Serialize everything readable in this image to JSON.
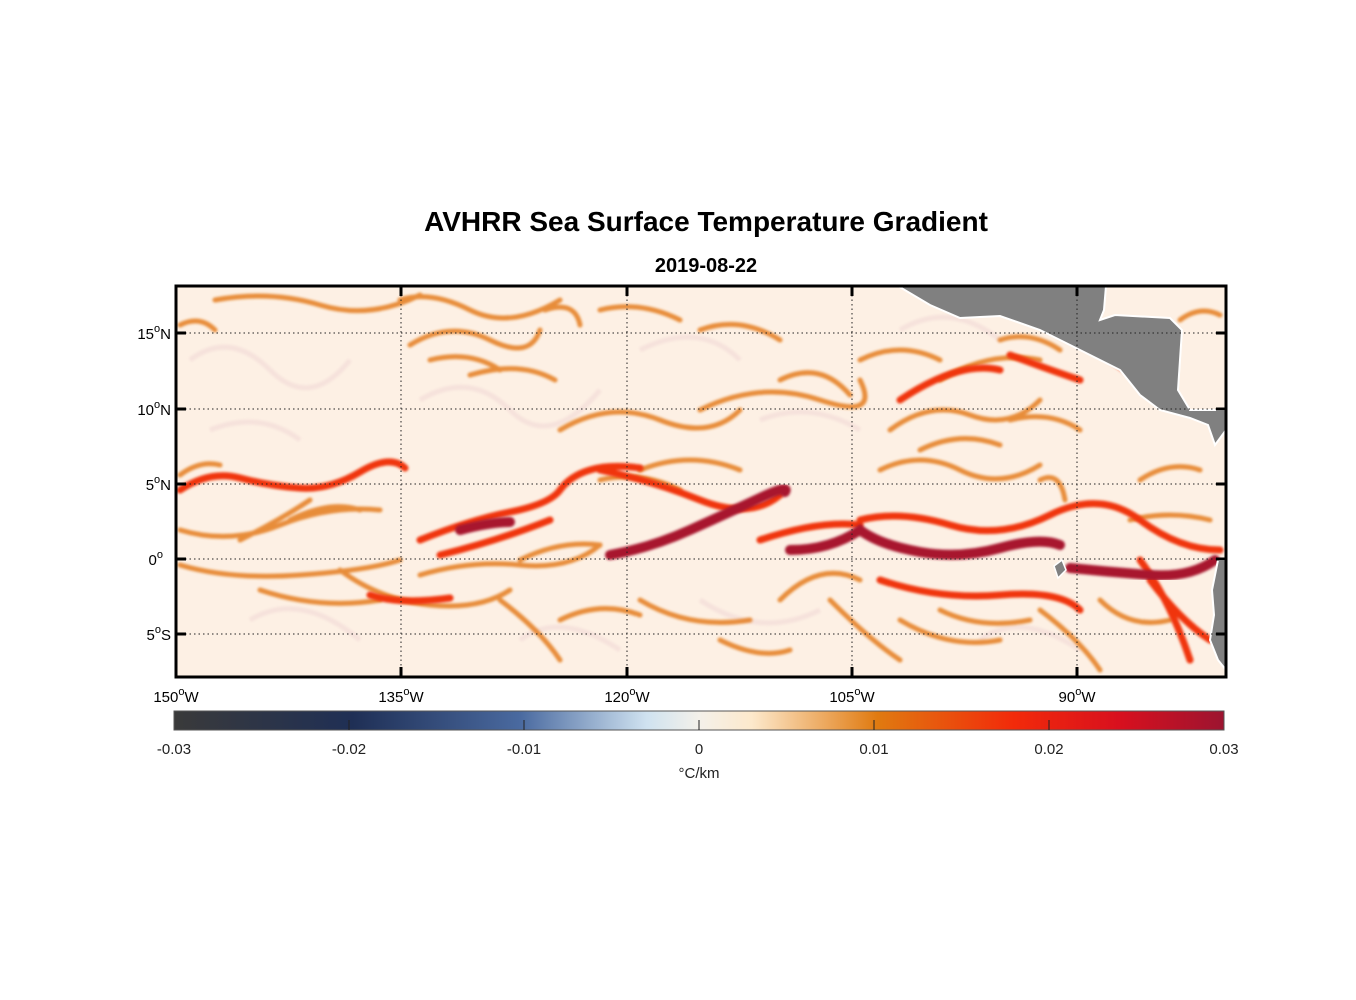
{
  "figure": {
    "title": "AVHRR Sea Surface Temperature Gradient",
    "subtitle": "2019-08-22"
  },
  "map": {
    "lon_ticks": [
      {
        "deg": "150",
        "hem": "W"
      },
      {
        "deg": "135",
        "hem": "W"
      },
      {
        "deg": "120",
        "hem": "W"
      },
      {
        "deg": "105",
        "hem": "W"
      },
      {
        "deg": "90",
        "hem": "W"
      }
    ],
    "lat_ticks": [
      {
        "deg": "15",
        "hem": "N"
      },
      {
        "deg": "10",
        "hem": "N"
      },
      {
        "deg": "5",
        "hem": "N"
      },
      {
        "deg": "0",
        "hem": ""
      },
      {
        "deg": "5",
        "hem": "S"
      }
    ],
    "degree_symbol": "o",
    "land_color": "#808080",
    "ocean_background": "#fdf0e4",
    "grid": "dotted"
  },
  "colorbar": {
    "tick_labels": [
      "-0.03",
      "-0.02",
      "-0.01",
      "0",
      "0.01",
      "0.02",
      "0.03"
    ],
    "unit": "°C/km",
    "colors": [
      "#3a3a3a",
      "#1f2f55",
      "#4a6aa0",
      "#cfe2f0",
      "#fde9cc",
      "#e07a10",
      "#f22a0a",
      "#d8101e",
      "#9c1430"
    ]
  }
}
